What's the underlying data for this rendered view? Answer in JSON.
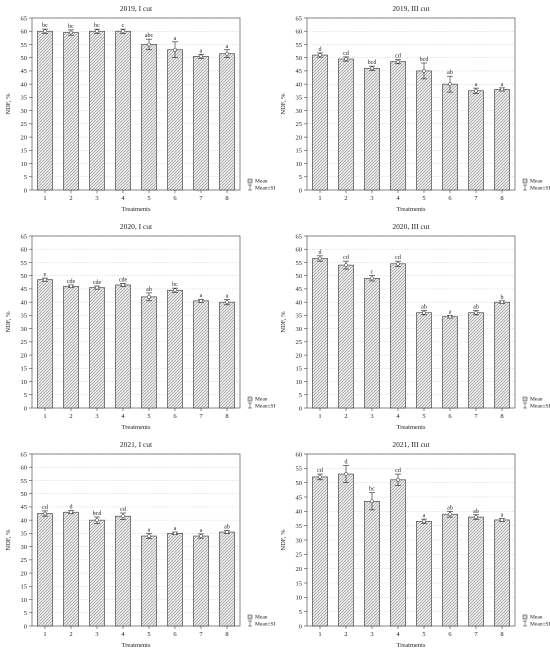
{
  "chart_data": [
    {
      "type": "bar",
      "title": "2019, I cut",
      "xlabel": "Treatments",
      "ylabel": "NDF, %",
      "ylim": [
        0,
        65
      ],
      "ytick_step": 5,
      "categories": [
        "1",
        "2",
        "3",
        "4",
        "5",
        "6",
        "7",
        "8"
      ],
      "values": [
        60,
        59.5,
        60,
        60,
        55,
        53,
        50.5,
        51.5
      ],
      "se": [
        0.8,
        1.0,
        0.8,
        0.8,
        2.0,
        3.0,
        0.8,
        1.5
      ],
      "letters": [
        "bc",
        "bc",
        "bc",
        "c",
        "abc",
        "a",
        "a",
        "a"
      ],
      "legend": [
        "Mean",
        "Mean±SE"
      ],
      "grid": true
    },
    {
      "type": "bar",
      "title": "2019, III cut",
      "xlabel": "Treatments",
      "ylabel": "NDF, %",
      "ylim": [
        0,
        65
      ],
      "ytick_step": 5,
      "categories": [
        "1",
        "2",
        "3",
        "4",
        "5",
        "6",
        "7",
        "8"
      ],
      "values": [
        51,
        49.5,
        46,
        48.5,
        45,
        40,
        37.5,
        38
      ],
      "se": [
        0.8,
        0.8,
        0.8,
        0.8,
        3.0,
        3.0,
        1.0,
        0.6
      ],
      "letters": [
        "d",
        "cd",
        "bcd",
        "cd",
        "bcd",
        "ab",
        "a",
        "a"
      ],
      "legend": [
        "Mean",
        "Mean±SE"
      ],
      "grid": true
    },
    {
      "type": "bar",
      "title": "2020, I cut",
      "xlabel": "Treatments",
      "ylabel": "NDF, %",
      "ylim": [
        0,
        65
      ],
      "ytick_step": 5,
      "categories": [
        "1",
        "2",
        "3",
        "4",
        "5",
        "6",
        "7",
        "8"
      ],
      "values": [
        48.5,
        46,
        45.5,
        46.5,
        42,
        44.5,
        40.5,
        40
      ],
      "se": [
        0.6,
        0.5,
        0.6,
        0.6,
        1.5,
        0.8,
        0.6,
        1.0
      ],
      "letters": [
        "e",
        "cde",
        "cde",
        "cde",
        "ab",
        "bc",
        "a",
        "a"
      ],
      "legend": [
        "Mean",
        "Mean±SE"
      ],
      "grid": true
    },
    {
      "type": "bar",
      "title": "2020, III cut",
      "xlabel": "Treatments",
      "ylabel": "NDF, %",
      "ylim": [
        0,
        65
      ],
      "ytick_step": 5,
      "categories": [
        "1",
        "2",
        "3",
        "4",
        "5",
        "6",
        "7",
        "8"
      ],
      "values": [
        56.5,
        54,
        49,
        54.5,
        36,
        34.5,
        36,
        40
      ],
      "se": [
        1.0,
        1.5,
        1.0,
        1.0,
        0.8,
        0.5,
        0.8,
        0.5
      ],
      "letters": [
        "d",
        "cd",
        "c",
        "cd",
        "ab",
        "a",
        "ab",
        "b"
      ],
      "legend": [
        "Mean",
        "Mean±SE"
      ],
      "grid": true
    },
    {
      "type": "bar",
      "title": "2021, I cut",
      "xlabel": "Treatments",
      "ylabel": "NDF, %",
      "ylim": [
        0,
        65
      ],
      "ytick_step": 5,
      "categories": [
        "1",
        "2",
        "3",
        "4",
        "5",
        "6",
        "7",
        "8"
      ],
      "values": [
        42.5,
        43,
        40,
        41.5,
        34,
        35,
        34,
        35.5
      ],
      "se": [
        1.0,
        0.6,
        1.2,
        1.2,
        1.0,
        0.5,
        0.8,
        0.6
      ],
      "letters": [
        "cd",
        "d",
        "bcd",
        "cd",
        "a",
        "a",
        "a",
        "ab"
      ],
      "legend": [
        "Mean",
        "Mean±SE"
      ],
      "grid": true
    },
    {
      "type": "bar",
      "title": "2021, III cut",
      "xlabel": "Treatments",
      "ylabel": "NDF, %",
      "ylim": [
        0,
        60
      ],
      "ytick_step": 5,
      "categories": [
        "1",
        "2",
        "3",
        "4",
        "5",
        "6",
        "7",
        "8"
      ],
      "values": [
        52,
        53,
        43.5,
        51,
        36.5,
        39,
        38,
        37
      ],
      "se": [
        1.0,
        3.0,
        3.0,
        2.0,
        0.8,
        1.0,
        0.8,
        0.5
      ],
      "letters": [
        "cd",
        "d",
        "bc",
        "cd",
        "a",
        "ab",
        "ab",
        "a"
      ],
      "legend": [
        "Mean",
        "Mean±SE"
      ],
      "grid": true
    }
  ]
}
